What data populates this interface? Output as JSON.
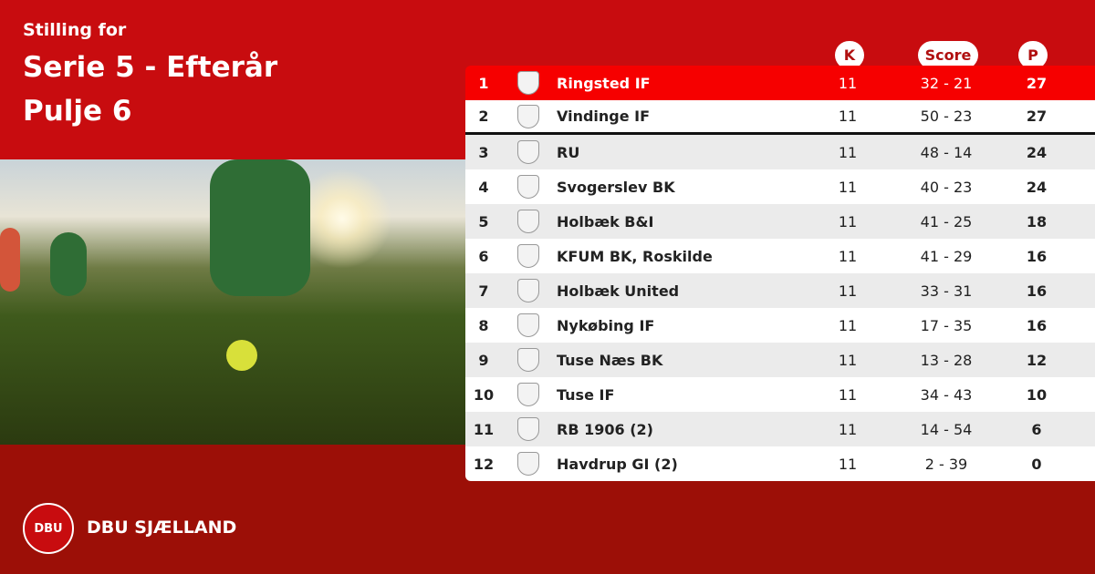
{
  "header": {
    "subtitle": "Stilling for",
    "title": "Serie 5 - Efterår",
    "pool": "Pulje 6"
  },
  "columns": {
    "k": "K",
    "score": "Score",
    "p": "P"
  },
  "rows": [
    {
      "pos": "1",
      "team": "Ringsted IF",
      "k": "11",
      "score": "32 - 21",
      "p": "27"
    },
    {
      "pos": "2",
      "team": "Vindinge IF",
      "k": "11",
      "score": "50 - 23",
      "p": "27"
    },
    {
      "pos": "3",
      "team": "RU",
      "k": "11",
      "score": "48 - 14",
      "p": "24"
    },
    {
      "pos": "4",
      "team": "Svogerslev BK",
      "k": "11",
      "score": "40 - 23",
      "p": "24"
    },
    {
      "pos": "5",
      "team": "Holbæk B&I",
      "k": "11",
      "score": "41 - 25",
      "p": "18"
    },
    {
      "pos": "6",
      "team": "KFUM BK, Roskilde",
      "k": "11",
      "score": "41 - 29",
      "p": "16"
    },
    {
      "pos": "7",
      "team": "Holbæk United",
      "k": "11",
      "score": "33 - 31",
      "p": "16"
    },
    {
      "pos": "8",
      "team": "Nykøbing IF",
      "k": "11",
      "score": "17 - 35",
      "p": "16"
    },
    {
      "pos": "9",
      "team": "Tuse Næs BK",
      "k": "11",
      "score": "13 - 28",
      "p": "12"
    },
    {
      "pos": "10",
      "team": "Tuse IF",
      "k": "11",
      "score": "34 - 43",
      "p": "10"
    },
    {
      "pos": "11",
      "team": "RB 1906 (2)",
      "k": "11",
      "score": "14 - 54",
      "p": "6"
    },
    {
      "pos": "12",
      "team": "Havdrup GI (2)",
      "k": "11",
      "score": "2 - 39",
      "p": "0"
    }
  ],
  "footer": {
    "logo_text": "DBU",
    "brand": "DBU SJÆLLAND"
  },
  "colors": {
    "primary": "#c80c0f",
    "leader": "#f60000",
    "footer": "#9c0f07"
  }
}
